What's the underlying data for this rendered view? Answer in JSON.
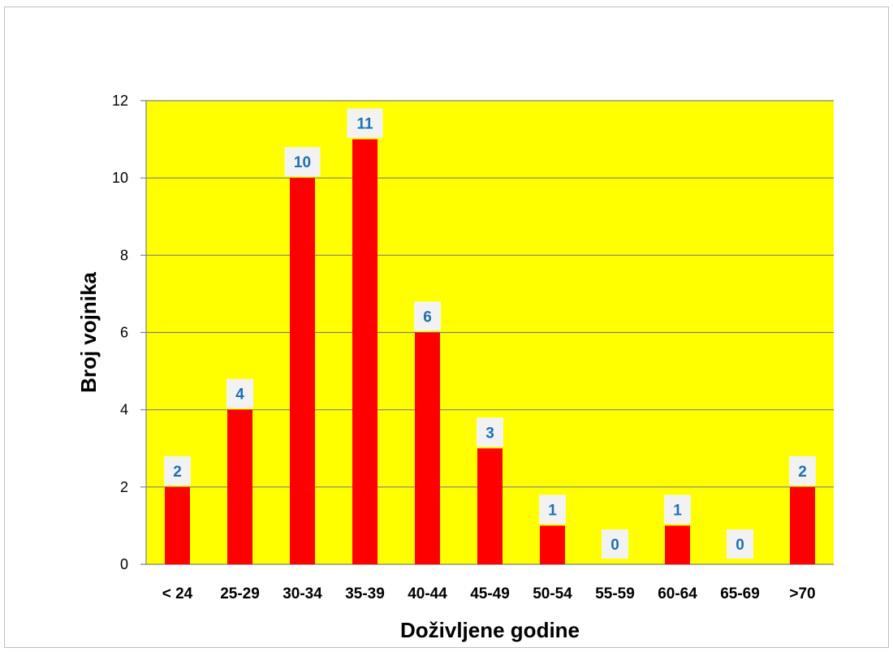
{
  "chart_data": {
    "type": "bar",
    "title": "",
    "xlabel": "Doživljene godine",
    "ylabel": "Broj vojnika",
    "categories": [
      "< 24",
      "25-29",
      "30-34",
      "35-39",
      "40-44",
      "45-49",
      "50-54",
      "55-59",
      "60-64",
      "65-69",
      ">70"
    ],
    "values": [
      2,
      4,
      10,
      11,
      6,
      3,
      1,
      0,
      1,
      0,
      2
    ],
    "ylim": [
      0,
      12
    ],
    "yticks": [
      0,
      2,
      4,
      6,
      8,
      10,
      12
    ],
    "grid": true,
    "legend": "none",
    "data_labels": true,
    "colors": {
      "plot_background": "#ffff00",
      "bar": "#ff0000",
      "gridline": "#808080",
      "data_label_text": "#1f6fb4",
      "data_label_box": "#f2f2f2"
    }
  }
}
